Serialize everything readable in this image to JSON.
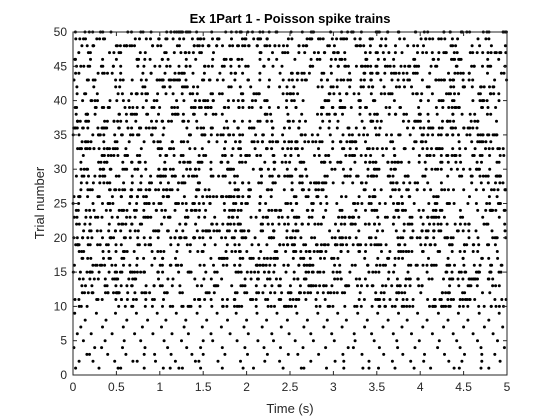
{
  "chart_data": {
    "type": "scatter",
    "title": "Ex 1Part 1 - Poisson spike trains",
    "xlabel": "Time (s)",
    "ylabel": "Trial number",
    "xlim": [
      0,
      5
    ],
    "ylim": [
      0,
      50
    ],
    "xticks": [
      "0",
      "0.5",
      "1",
      "1.5",
      "2",
      "2.5",
      "3",
      "3.5",
      "4",
      "4.5",
      "5"
    ],
    "yticks": [
      "0",
      "5",
      "10",
      "15",
      "20",
      "25",
      "30",
      "35",
      "40",
      "45",
      "50"
    ],
    "grid": false,
    "marker": "dot",
    "marker_color": "#000000",
    "trials": 50,
    "approx_spike_rate_hz": 15,
    "series": [
      {
        "x": [
          0.03,
          0.3,
          0.52,
          0.55,
          0.82,
          1.04,
          1.12,
          1.22,
          1.26,
          1.47,
          1.72,
          1.96,
          2.08,
          2.42,
          2.63,
          2.66,
          2.92,
          3.12,
          3.34,
          3.41,
          3.52,
          3.71,
          3.93,
          4.12,
          4.39,
          4.45,
          4.7,
          4.79,
          0.07,
          0.23,
          0.48,
          0.69,
          0.74,
          0.95,
          1.18,
          1.41,
          1.45,
          1.67,
          1.93,
          2.21,
          2.38,
          2.74,
          3.02,
          3.12,
          3.41,
          3.68,
          3.89,
          4.04,
          4.33,
          4.48,
          4.71,
          4.92,
          0.16,
          0.19,
          0.4,
          0.61,
          0.82,
          0.94,
          1.13,
          1.37,
          1.5,
          1.75,
          2.01,
          2.24,
          2.48,
          2.59,
          2.83,
          3.11,
          3.33,
          3.58,
          3.8,
          4.05,
          4.28,
          4.51,
          4.71,
          4.86,
          0.01,
          0.25,
          0.33,
          0.57,
          0.83,
          1.09,
          1.31,
          1.47,
          1.72,
          1.98,
          2.2,
          2.39,
          2.65,
          2.91,
          3.17,
          3.23,
          3.53,
          3.74,
          3.94,
          4.2,
          4.46,
          4.7,
          4.97,
          0.12,
          0.37,
          0.59,
          0.78,
          1.05,
          1.25,
          1.5,
          1.61,
          1.89,
          2.13,
          2.31,
          2.56,
          2.77,
          3.01,
          3.25,
          3.47,
          3.73,
          3.99,
          4.22,
          4.42,
          4.66,
          4.89,
          0.05,
          0.21,
          0.45,
          0.71,
          0.92,
          1.14,
          1.33,
          1.59,
          1.81,
          2.02,
          2.29,
          2.49,
          2.74,
          2.98,
          3.24,
          3.44,
          3.69,
          3.9,
          4.14,
          4.38,
          4.61,
          4.84,
          0.09,
          0.34,
          0.58,
          0.8,
          1.02,
          1.28,
          1.49,
          1.71,
          1.97,
          2.18,
          2.4,
          2.66,
          2.89,
          3.1,
          3.36,
          3.57,
          3.79,
          4.03,
          4.27,
          4.5,
          4.74,
          4.95,
          0.14,
          0.38,
          0.62,
          0.86,
          1.07,
          1.3,
          1.54,
          1.78,
          2.0,
          2.23,
          2.47,
          2.7,
          2.93,
          3.15,
          3.39,
          3.63,
          3.85,
          4.08,
          4.32,
          4.55,
          4.79,
          0.02,
          0.27,
          0.49,
          0.73,
          0.97,
          1.19,
          1.43,
          1.66,
          1.88,
          2.12,
          2.35,
          2.58,
          2.82,
          3.05,
          3.28,
          3.51,
          3.75,
          3.97,
          4.21,
          4.44,
          4.68,
          4.91
        ],
        "y": [
          1,
          1,
          1,
          1,
          1,
          1,
          1,
          1,
          1,
          1,
          1,
          1,
          1,
          1,
          1,
          1,
          1,
          1,
          1,
          1,
          1,
          1,
          1,
          1,
          1,
          1,
          1,
          1,
          2,
          2,
          2,
          2,
          2,
          2,
          2,
          2,
          2,
          2,
          2,
          2,
          2,
          2,
          2,
          2,
          2,
          2,
          2,
          2,
          2,
          2,
          2,
          2,
          3,
          3,
          3,
          3,
          3,
          3,
          3,
          3,
          3,
          3,
          3,
          3,
          3,
          3,
          3,
          3,
          3,
          3,
          3,
          3,
          3,
          3,
          3,
          3,
          4,
          4,
          4,
          4,
          4,
          4,
          4,
          4,
          4,
          4,
          4,
          4,
          4,
          4,
          4,
          4,
          4,
          4,
          4,
          4,
          4,
          4,
          4,
          5,
          5,
          5,
          5,
          5,
          5,
          5,
          5,
          5,
          5,
          5,
          5,
          5,
          5,
          5,
          5,
          5,
          5,
          5,
          5,
          5,
          5,
          6,
          6,
          6,
          6,
          6,
          6,
          6,
          6,
          6,
          6,
          6,
          6,
          6,
          6,
          6,
          6,
          6,
          6,
          6,
          6,
          6,
          6,
          7,
          7,
          7,
          7,
          7,
          7,
          7,
          7,
          7,
          7,
          7,
          7,
          7,
          7,
          7,
          7,
          7,
          7,
          7,
          7,
          7,
          7,
          8,
          8,
          8,
          8,
          8,
          8,
          8,
          8,
          8,
          8,
          8,
          8,
          8,
          8,
          8,
          8,
          8,
          8,
          8,
          8,
          8,
          9,
          9,
          9,
          9,
          9,
          9,
          9,
          9,
          9,
          9,
          9,
          9,
          9,
          9,
          9,
          9,
          9,
          9,
          9,
          9,
          9,
          9
        ]
      }
    ]
  }
}
